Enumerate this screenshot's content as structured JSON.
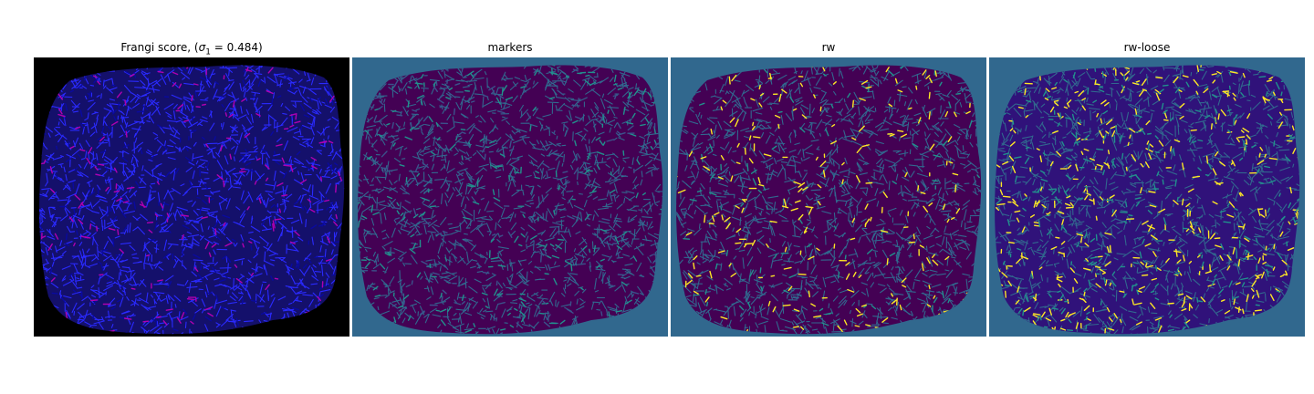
{
  "panels": [
    {
      "id": "frangi",
      "title_prefix": "Frangi score, (",
      "title_symbol": "σ",
      "title_sub": "1",
      "title_suffix": " = 0.484)",
      "background": "#000000",
      "blob_color": "#14106b",
      "vessel_colors": [
        "#2a2aff",
        "#0a0a9e",
        "#b000b0"
      ]
    },
    {
      "id": "markers",
      "title": "markers",
      "background": "#31688e",
      "blob_color": "#440154",
      "vessel_colors": [
        "#31688e",
        "#21918c",
        "#3b528b"
      ]
    },
    {
      "id": "rw",
      "title": "rw",
      "background": "#31688e",
      "blob_color": "#440154",
      "vessel_colors": [
        "#31688e",
        "#21918c",
        "#fde725"
      ]
    },
    {
      "id": "rw-loose",
      "title": "rw-loose",
      "background": "#31688e",
      "blob_color": "#30127a",
      "vessel_colors": [
        "#31688e",
        "#fde725",
        "#21918c"
      ]
    }
  ]
}
